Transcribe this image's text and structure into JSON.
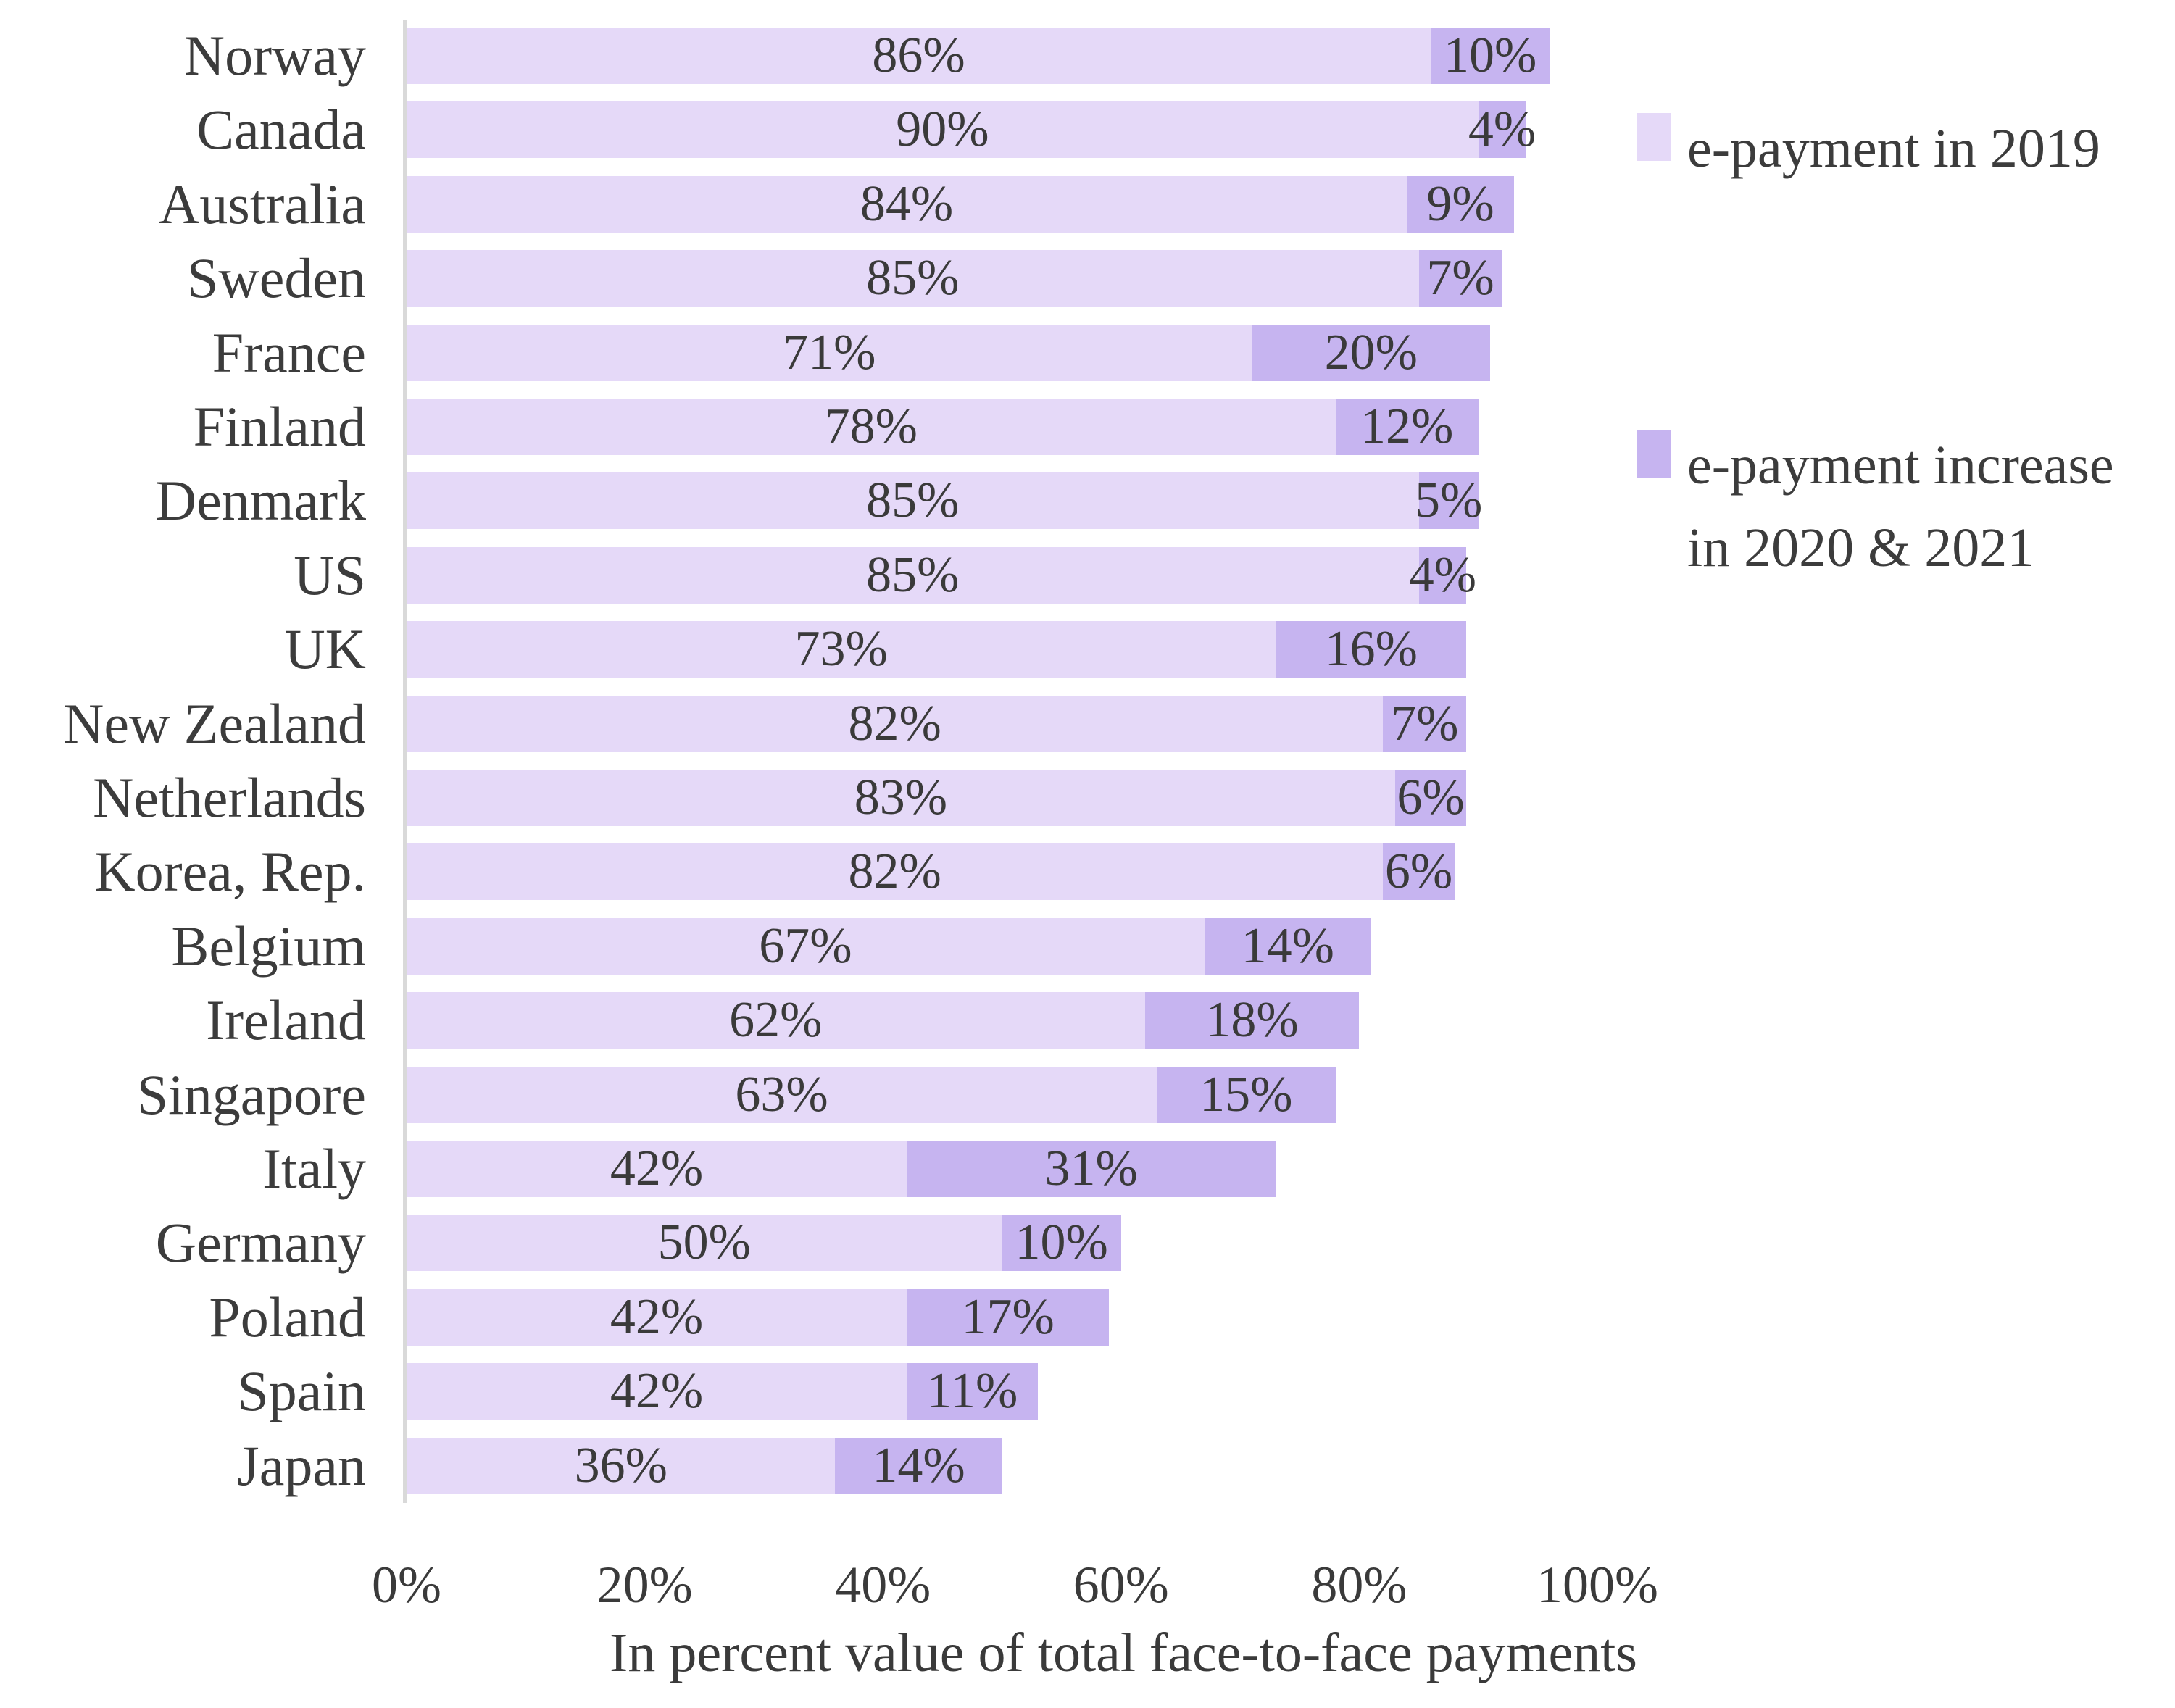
{
  "chart_data": {
    "type": "bar",
    "orientation": "horizontal",
    "stacked": true,
    "categories": [
      "Norway",
      "Canada",
      "Australia",
      "Sweden",
      "France",
      "Finland",
      "Denmark",
      "US",
      "UK",
      "New Zealand",
      "Netherlands",
      "Korea, Rep.",
      "Belgium",
      "Ireland",
      "Singapore",
      "Italy",
      "Germany",
      "Poland",
      "Spain",
      "Japan"
    ],
    "series": [
      {
        "name": "e-payment in 2019",
        "color": "#e5d9f8",
        "values": [
          86,
          90,
          84,
          85,
          71,
          78,
          85,
          85,
          73,
          82,
          83,
          82,
          67,
          62,
          63,
          42,
          50,
          42,
          42,
          36
        ]
      },
      {
        "name": "e-payment increase in 2020 & 2021",
        "color": "#c6b4f0",
        "values": [
          10,
          4,
          9,
          7,
          20,
          12,
          5,
          4,
          16,
          7,
          6,
          6,
          14,
          18,
          15,
          31,
          10,
          17,
          11,
          14
        ]
      }
    ],
    "value_suffix": "%",
    "xlabel": "In percent value of total face-to-face payments",
    "x_ticks": [
      0,
      20,
      40,
      60,
      80,
      100
    ],
    "x_tick_suffix": "%",
    "xlim": [
      0,
      100
    ],
    "grid": false,
    "legend_position": "right"
  },
  "legend": {
    "item1_label": "e-payment in 2019",
    "item2_label_line1": "e-payment increase",
    "item2_label_line2": "in 2020 & 2021"
  },
  "colors": {
    "bar_2019": "#e5d9f8",
    "bar_increase": "#c6b4f0",
    "text": "#3c3c3c",
    "axis_line": "#d9d9d9"
  }
}
